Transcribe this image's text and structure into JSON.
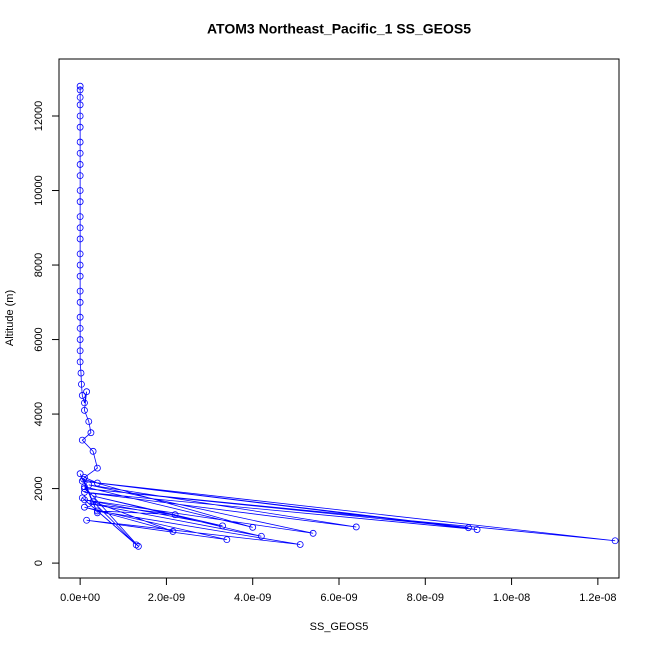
{
  "chart_data": {
    "type": "line",
    "title": "ATOM3 Northeast_Pacific_1 SS_GEOS5",
    "x_label": "SS_GEOS5",
    "y_label": "Altitude (m)",
    "color": "#0000ff",
    "markers": true,
    "x": [
      0,
      0,
      0,
      0,
      0,
      0,
      0,
      0,
      0,
      0,
      0,
      0,
      0,
      0,
      0,
      0,
      0,
      0,
      0,
      0,
      0,
      0,
      0,
      0,
      0,
      2e-11,
      3e-11,
      5e-11,
      1e-10,
      1.5e-10,
      1e-10,
      2e-10,
      2.5e-10,
      5e-11,
      3e-10,
      4e-10,
      1e-10,
      4e-10,
      9e-09,
      1e-10,
      1.24e-08,
      5e-11,
      9.2e-09,
      1e-10,
      6.4e-09,
      2e-10,
      5.4e-09,
      1e-10,
      3.3e-09,
      3e-10,
      4.2e-09,
      2e-10,
      2.2e-09,
      4e-10,
      5.1e-09,
      1.5e-10,
      3.4e-09,
      1e-10,
      2.15e-09,
      3e-10,
      1.3e-09,
      5e-11,
      1.35e-09,
      1e-10,
      4e-09,
      8e-11,
      4e-10,
      0
    ],
    "values": [
      12800,
      12700,
      12500,
      12300,
      12000,
      11700,
      11300,
      11000,
      10700,
      10400,
      10000,
      9700,
      9300,
      9000,
      8700,
      8300,
      8000,
      7700,
      7300,
      7000,
      6600,
      6300,
      6000,
      5700,
      5400,
      5100,
      4800,
      4500,
      4300,
      4600,
      4100,
      3800,
      3500,
      3300,
      3000,
      2550,
      2300,
      2150,
      950,
      2000,
      600,
      2200,
      900,
      1900,
      970,
      2100,
      800,
      1700,
      1000,
      1800,
      720,
      1600,
      1300,
      1400,
      500,
      1150,
      630,
      1500,
      850,
      1650,
      490,
      1750,
      450,
      2050,
      960,
      2250,
      1350,
      2400
    ],
    "xlim": [
      -4.9e-10,
      1.249e-08
    ],
    "ylim": [
      -400,
      13530
    ],
    "xticks": [
      {
        "value": 0,
        "label": "0.0e+00"
      },
      {
        "value": 2e-09,
        "label": "2.0e-09"
      },
      {
        "value": 4e-09,
        "label": "4.0e-09"
      },
      {
        "value": 6e-09,
        "label": "6.0e-09"
      },
      {
        "value": 8e-09,
        "label": "8.0e-09"
      },
      {
        "value": 1e-08,
        "label": "1.0e-08"
      },
      {
        "value": 1.2e-08,
        "label": "1.2e-08"
      }
    ],
    "yticks": [
      0,
      2000,
      4000,
      6000,
      8000,
      10000,
      12000
    ]
  }
}
